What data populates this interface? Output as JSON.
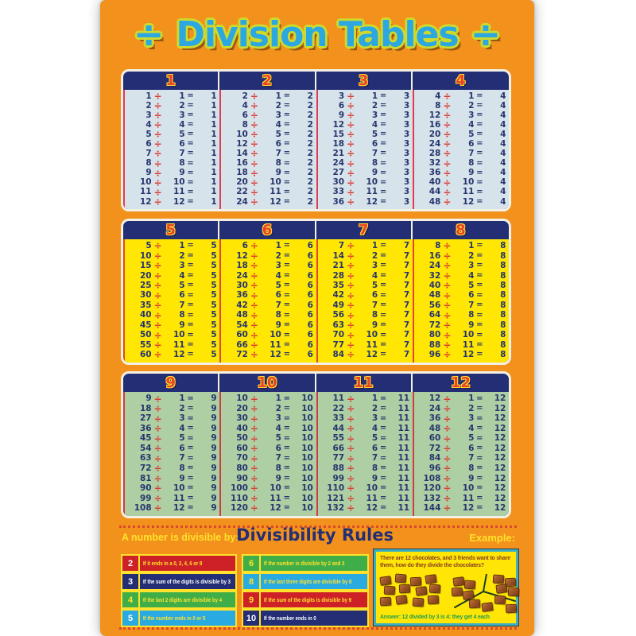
{
  "colors": {
    "poster_bg": "#f2921d",
    "frame_border": "#f4f0e4",
    "panel_navy": "#242e75",
    "header_number_fill": "#e8432c",
    "header_number_outline": "#ffd92b",
    "equation_number": "#27356f",
    "divide_sign_red": "#dd3a34",
    "title_fill": "#2ba7e1",
    "title_outline": "#ced92d",
    "yellow_accent": "#ffe22b",
    "rules_heading": "#232e75",
    "example_border": "#3bafc0",
    "example_bg": "#ffe607",
    "question_text": "#8a3d1c",
    "answer_text": "#1e9e4d",
    "chocolate_dark": "#7a3a16",
    "chocolate_light": "#c1703a",
    "dashed_line": "#d94a2b"
  },
  "title": {
    "left_icon": "÷",
    "text": "Division Tables",
    "right_icon": "÷"
  },
  "symbols": {
    "divide": "÷",
    "equals": "="
  },
  "sections": [
    {
      "body_bg": "#d6e3ea",
      "divider_color": "#e23a55",
      "tables": [
        {
          "header": "1",
          "rows": [
            [
              1,
              1,
              1
            ],
            [
              2,
              2,
              1
            ],
            [
              3,
              3,
              1
            ],
            [
              4,
              4,
              1
            ],
            [
              5,
              5,
              1
            ],
            [
              6,
              6,
              1
            ],
            [
              7,
              7,
              1
            ],
            [
              8,
              8,
              1
            ],
            [
              9,
              9,
              1
            ],
            [
              10,
              10,
              1
            ],
            [
              11,
              11,
              1
            ],
            [
              12,
              12,
              1
            ]
          ]
        },
        {
          "header": "2",
          "rows": [
            [
              2,
              1,
              2
            ],
            [
              4,
              2,
              2
            ],
            [
              6,
              3,
              2
            ],
            [
              8,
              4,
              2
            ],
            [
              10,
              5,
              2
            ],
            [
              12,
              6,
              2
            ],
            [
              14,
              7,
              2
            ],
            [
              16,
              8,
              2
            ],
            [
              18,
              9,
              2
            ],
            [
              20,
              10,
              2
            ],
            [
              22,
              11,
              2
            ],
            [
              24,
              12,
              2
            ]
          ]
        },
        {
          "header": "3",
          "rows": [
            [
              3,
              1,
              3
            ],
            [
              6,
              2,
              3
            ],
            [
              9,
              3,
              3
            ],
            [
              12,
              4,
              3
            ],
            [
              15,
              5,
              3
            ],
            [
              18,
              6,
              3
            ],
            [
              21,
              7,
              3
            ],
            [
              24,
              8,
              3
            ],
            [
              27,
              9,
              3
            ],
            [
              30,
              10,
              3
            ],
            [
              33,
              11,
              3
            ],
            [
              36,
              12,
              3
            ]
          ]
        },
        {
          "header": "4",
          "rows": [
            [
              4,
              1,
              4
            ],
            [
              8,
              2,
              4
            ],
            [
              12,
              3,
              4
            ],
            [
              16,
              4,
              4
            ],
            [
              20,
              5,
              4
            ],
            [
              24,
              6,
              4
            ],
            [
              28,
              7,
              4
            ],
            [
              32,
              8,
              4
            ],
            [
              36,
              9,
              4
            ],
            [
              40,
              10,
              4
            ],
            [
              44,
              11,
              4
            ],
            [
              48,
              12,
              4
            ]
          ]
        }
      ]
    },
    {
      "body_bg": "#ffe703",
      "divider_color": "#e1472b",
      "tables": [
        {
          "header": "5",
          "rows": [
            [
              5,
              1,
              5
            ],
            [
              10,
              2,
              5
            ],
            [
              15,
              3,
              5
            ],
            [
              20,
              4,
              5
            ],
            [
              25,
              5,
              5
            ],
            [
              30,
              6,
              5
            ],
            [
              35,
              7,
              5
            ],
            [
              40,
              8,
              5
            ],
            [
              45,
              9,
              5
            ],
            [
              50,
              10,
              5
            ],
            [
              55,
              11,
              5
            ],
            [
              60,
              12,
              5
            ]
          ]
        },
        {
          "header": "6",
          "rows": [
            [
              6,
              1,
              6
            ],
            [
              12,
              2,
              6
            ],
            [
              18,
              3,
              6
            ],
            [
              24,
              4,
              6
            ],
            [
              30,
              5,
              6
            ],
            [
              36,
              6,
              6
            ],
            [
              42,
              7,
              6
            ],
            [
              48,
              8,
              6
            ],
            [
              54,
              9,
              6
            ],
            [
              60,
              10,
              6
            ],
            [
              66,
              11,
              6
            ],
            [
              72,
              12,
              6
            ]
          ]
        },
        {
          "header": "7",
          "rows": [
            [
              7,
              1,
              7
            ],
            [
              14,
              2,
              7
            ],
            [
              21,
              3,
              7
            ],
            [
              28,
              4,
              7
            ],
            [
              35,
              5,
              7
            ],
            [
              42,
              6,
              7
            ],
            [
              49,
              7,
              7
            ],
            [
              56,
              8,
              7
            ],
            [
              63,
              9,
              7
            ],
            [
              70,
              10,
              7
            ],
            [
              77,
              11,
              7
            ],
            [
              84,
              12,
              7
            ]
          ]
        },
        {
          "header": "8",
          "rows": [
            [
              8,
              1,
              8
            ],
            [
              16,
              2,
              8
            ],
            [
              24,
              3,
              8
            ],
            [
              32,
              4,
              8
            ],
            [
              40,
              5,
              8
            ],
            [
              48,
              6,
              8
            ],
            [
              56,
              7,
              8
            ],
            [
              64,
              8,
              8
            ],
            [
              72,
              9,
              8
            ],
            [
              80,
              10,
              8
            ],
            [
              88,
              11,
              8
            ],
            [
              96,
              12,
              8
            ]
          ]
        }
      ]
    },
    {
      "body_bg": "#adcfa3",
      "divider_color": "#d13a47",
      "tables": [
        {
          "header": "9",
          "rows": [
            [
              9,
              1,
              9
            ],
            [
              18,
              2,
              9
            ],
            [
              27,
              3,
              9
            ],
            [
              36,
              4,
              9
            ],
            [
              45,
              5,
              9
            ],
            [
              54,
              6,
              9
            ],
            [
              63,
              7,
              9
            ],
            [
              72,
              8,
              9
            ],
            [
              81,
              9,
              9
            ],
            [
              90,
              10,
              9
            ],
            [
              99,
              11,
              9
            ],
            [
              108,
              12,
              9
            ]
          ]
        },
        {
          "header": "10",
          "rows": [
            [
              10,
              1,
              10
            ],
            [
              20,
              2,
              10
            ],
            [
              30,
              3,
              10
            ],
            [
              40,
              4,
              10
            ],
            [
              50,
              5,
              10
            ],
            [
              60,
              6,
              10
            ],
            [
              70,
              7,
              10
            ],
            [
              80,
              8,
              10
            ],
            [
              90,
              9,
              10
            ],
            [
              100,
              10,
              10
            ],
            [
              110,
              11,
              10
            ],
            [
              120,
              12,
              10
            ]
          ]
        },
        {
          "header": "11",
          "rows": [
            [
              11,
              1,
              11
            ],
            [
              22,
              2,
              11
            ],
            [
              33,
              3,
              11
            ],
            [
              44,
              4,
              11
            ],
            [
              55,
              5,
              11
            ],
            [
              66,
              6,
              11
            ],
            [
              77,
              7,
              11
            ],
            [
              88,
              8,
              11
            ],
            [
              99,
              9,
              11
            ],
            [
              110,
              10,
              11
            ],
            [
              121,
              11,
              11
            ],
            [
              132,
              12,
              11
            ]
          ]
        },
        {
          "header": "12",
          "rows": [
            [
              12,
              1,
              12
            ],
            [
              24,
              2,
              12
            ],
            [
              36,
              3,
              12
            ],
            [
              48,
              4,
              12
            ],
            [
              60,
              5,
              12
            ],
            [
              72,
              6,
              12
            ],
            [
              84,
              7,
              12
            ],
            [
              96,
              8,
              12
            ],
            [
              108,
              9,
              12
            ],
            [
              120,
              10,
              12
            ],
            [
              132,
              11,
              12
            ],
            [
              144,
              12,
              12
            ]
          ]
        }
      ]
    }
  ],
  "divisibility": {
    "label": "A number is divisible by:",
    "heading": "Divisibility Rules",
    "example_label": "Example:",
    "columns": [
      [
        {
          "number": "2",
          "text": "If it ends in a 0, 2, 4, 6 or 8",
          "bg": "#cd2027",
          "text_color": "#ffe22b",
          "badge_color": "#ffffff"
        },
        {
          "number": "3",
          "text": "If the sum of the digits is divisible by 3",
          "bg": "#232e75",
          "text_color": "#ffffff",
          "badge_color": "#ffffff"
        },
        {
          "number": "4",
          "text": "If the last 2 digits are divisible by 4",
          "bg": "#3fae49",
          "text_color": "#ffe22b",
          "badge_color": "#ffe22b"
        },
        {
          "number": "5",
          "text": "If the number ends in 0 or 5",
          "bg": "#29abe2",
          "text_color": "#ffe22b",
          "badge_color": "#ffffff"
        }
      ],
      [
        {
          "number": "6",
          "text": "If the number is divisible by 2 and 3",
          "bg": "#3fae49",
          "text_color": "#ffe22b",
          "badge_color": "#ffe22b"
        },
        {
          "number": "8",
          "text": "If the last three digits are divisible by 8",
          "bg": "#29abe2",
          "text_color": "#ffe22b",
          "badge_color": "#ffe22b"
        },
        {
          "number": "9",
          "text": "If the sum of the digits is divisible by 9",
          "bg": "#cd2027",
          "text_color": "#ffe22b",
          "badge_color": "#ffe22b"
        },
        {
          "number": "10",
          "text": "If the number ends in 0",
          "bg": "#232e75",
          "text_color": "#ffffff",
          "badge_color": "#ffffff"
        }
      ]
    ],
    "example": {
      "question_parts": [
        {
          "t": "There are ",
          "b": false
        },
        {
          "t": "12",
          "b": true
        },
        {
          "t": " chocolates, and ",
          "b": false
        },
        {
          "t": "3",
          "b": true
        },
        {
          "t": " friends want to share them, how do they divide the chocolates?",
          "b": false
        }
      ],
      "answer_parts": [
        {
          "t": "Answer:",
          "b": true
        },
        {
          "t": " 12 divided by 3 is 4: ",
          "b": false
        },
        {
          "t": "they get 4 each",
          "b": true
        }
      ],
      "total_chocolates": 12,
      "groups": 3,
      "per_group": 4
    }
  }
}
